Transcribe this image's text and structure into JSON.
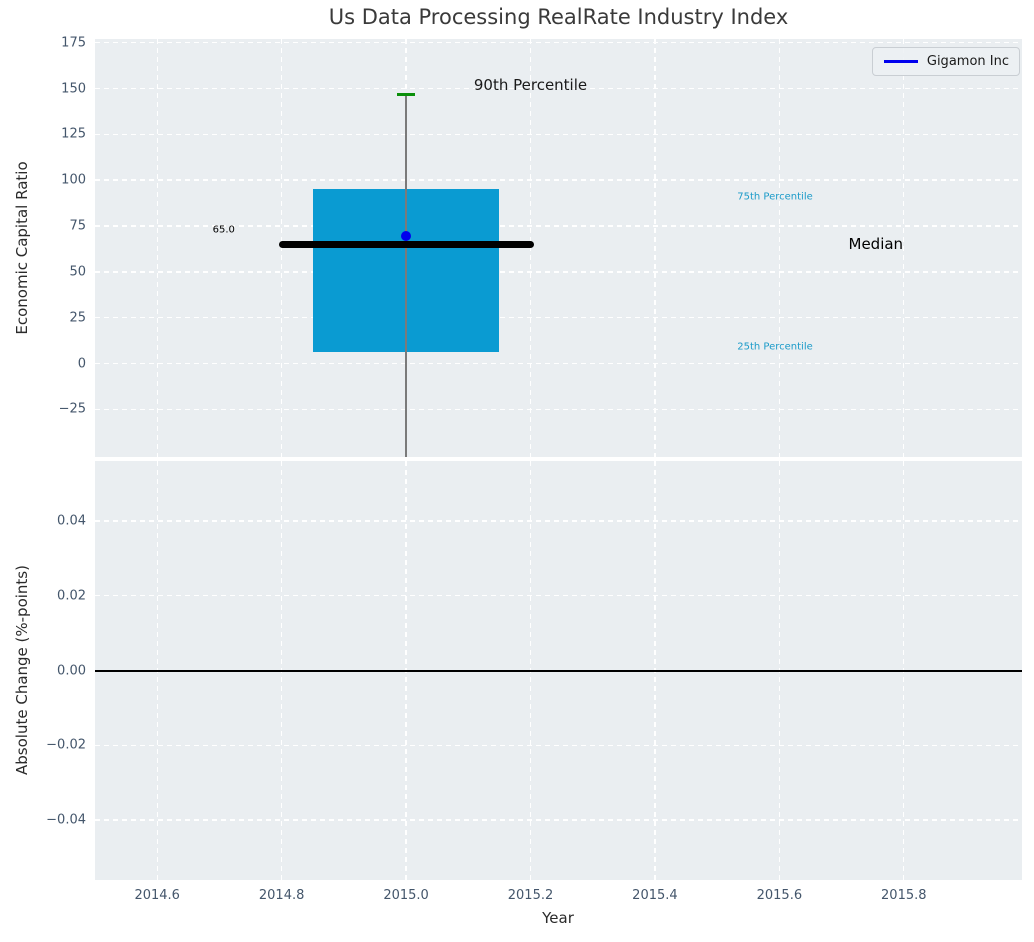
{
  "colors": {
    "figure_bg": "#ffffff",
    "plot_bg": "#eaeef1",
    "grid": "#ffffff",
    "tick_label": "#44566b",
    "axis_label": "#2b2b2b",
    "title": "#3a3a3a",
    "box_fill": "#0a9bd2",
    "whisker": "#7a7a7a",
    "cap": "#0a8f0a",
    "median_line": "#000000",
    "point": "#0000ee",
    "percentile_label": "#1b9bc9",
    "zero_line": "#000000"
  },
  "chart_data": [
    {
      "type": "box",
      "title": "Us Data Processing RealRate Industry Index",
      "ylabel": "Economic Capital Ratio",
      "xlabel": "Year",
      "xlim": [
        2014.5,
        2015.99
      ],
      "ylim": [
        -51,
        177
      ],
      "grid": true,
      "yticks": {
        "values": [
          175,
          150,
          125,
          100,
          75,
          50,
          25,
          0,
          -25
        ],
        "labels": [
          "175",
          "150",
          "125",
          "100",
          "75",
          "50",
          "25",
          "0",
          "−25"
        ]
      },
      "xticks": {
        "values": [
          2014.6,
          2014.8,
          2015.0,
          2015.2,
          2015.4,
          2015.6,
          2015.8
        ],
        "labels": [
          "2014.6",
          "2014.8",
          "2015.0",
          "2015.2",
          "2015.4",
          "2015.6",
          "2015.8"
        ]
      },
      "box": {
        "x_center": 2015.0,
        "box_left": 2014.85,
        "box_right": 2015.15,
        "q1": 6,
        "median": 65,
        "q3": 95,
        "p90": 147,
        "median_line_left": 2014.795,
        "median_line_right": 2015.205,
        "cap_left": 2014.985,
        "cap_right": 2015.015,
        "whisker_low": -51,
        "fill_color": "#0a9bd2"
      },
      "point": {
        "name": "Gigamon Inc",
        "x": 2015.0,
        "y": 69.5,
        "color": "#0000ee"
      },
      "annotations": [
        {
          "text": "65.0",
          "x": 2014.707,
          "y": 73,
          "color": "#000000",
          "size": 10
        },
        {
          "text": "90th Percentile",
          "x": 2015.2,
          "y": 152,
          "color": "#1a1a1a",
          "size": 15
        },
        {
          "text": "75th Percentile",
          "x": 2015.593,
          "y": 91,
          "color": "#1b9bc9",
          "size": 10
        },
        {
          "text": "Median",
          "x": 2015.755,
          "y": 65,
          "color": "#000000",
          "size": 15
        },
        {
          "text": "25th Percentile",
          "x": 2015.593,
          "y": 9,
          "color": "#1b9bc9",
          "size": 10
        }
      ],
      "legend": {
        "label": "Gigamon Inc",
        "line_color": "#0000ee",
        "position": "upper right"
      }
    },
    {
      "type": "line",
      "ylabel": "Absolute Change (%-points)",
      "xlabel": "Year",
      "xlim": [
        2014.5,
        2015.99
      ],
      "ylim": [
        -0.056,
        0.056
      ],
      "grid": true,
      "yticks": {
        "values": [
          0.04,
          0.02,
          0,
          -0.02,
          -0.04
        ],
        "labels": [
          "0.04",
          "0.02",
          "0.00",
          "−0.02",
          "−0.04"
        ]
      },
      "xticks": {
        "values": [
          2014.6,
          2014.8,
          2015.0,
          2015.2,
          2015.4,
          2015.6,
          2015.8
        ],
        "labels": [
          "2014.6",
          "2014.8",
          "2015.0",
          "2015.2",
          "2015.4",
          "2015.6",
          "2015.8"
        ]
      },
      "zero_line": {
        "y": 0,
        "color": "#000000"
      }
    }
  ]
}
